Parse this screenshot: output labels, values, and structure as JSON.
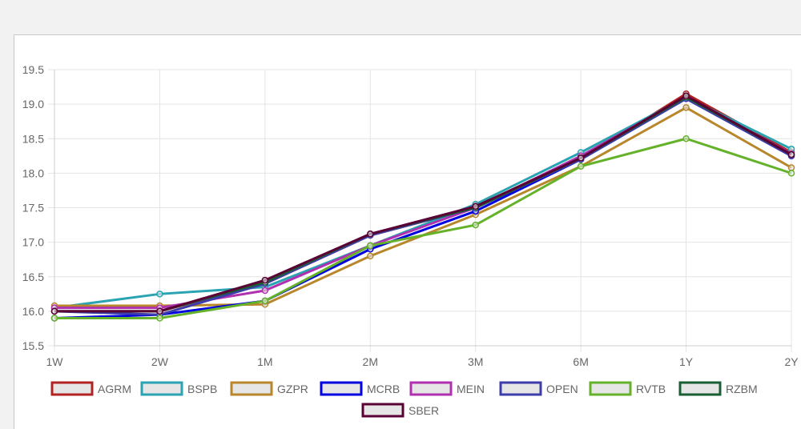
{
  "chart_data": {
    "type": "line",
    "title": "",
    "xlabel": "",
    "ylabel": "",
    "categories": [
      "1W",
      "2W",
      "1M",
      "2M",
      "3M",
      "6M",
      "1Y",
      "2Y"
    ],
    "ylim": [
      15.5,
      19.5
    ],
    "yticks": [
      "15.5",
      "16.0",
      "16.5",
      "17.0",
      "17.5",
      "18.0",
      "18.5",
      "19.0",
      "19.5"
    ],
    "grid": true,
    "legend_position": "bottom",
    "series": [
      {
        "name": "AGRM",
        "color": "#b22222",
        "values": [
          16.0,
          16.0,
          16.4,
          17.1,
          17.5,
          18.2,
          19.15,
          18.3
        ]
      },
      {
        "name": "BSPB",
        "color": "#2aa3b2",
        "values": [
          16.05,
          16.25,
          16.35,
          16.95,
          17.55,
          18.3,
          19.1,
          18.35
        ]
      },
      {
        "name": "GZPR",
        "color": "#b8862b",
        "values": [
          16.08,
          16.08,
          16.1,
          16.8,
          17.4,
          18.1,
          18.95,
          18.08
        ]
      },
      {
        "name": "MCRB",
        "color": "#0000e0",
        "values": [
          15.9,
          15.95,
          16.15,
          16.9,
          17.45,
          18.2,
          19.08,
          18.25
        ]
      },
      {
        "name": "MEIN",
        "color": "#b030b0",
        "values": [
          16.05,
          16.05,
          16.3,
          16.95,
          17.5,
          18.25,
          19.1,
          18.28
        ]
      },
      {
        "name": "OPEN",
        "color": "#3c3caa",
        "values": [
          16.0,
          15.95,
          16.4,
          17.1,
          17.5,
          18.2,
          19.08,
          18.25
        ]
      },
      {
        "name": "RVTB",
        "color": "#64b22a",
        "values": [
          15.9,
          15.9,
          16.15,
          16.95,
          17.25,
          18.1,
          18.5,
          18.0
        ]
      },
      {
        "name": "RZBM",
        "color": "#1a5e34",
        "values": [
          16.0,
          16.0,
          16.42,
          17.12,
          17.5,
          18.22,
          19.1,
          18.27
        ]
      },
      {
        "name": "SBER",
        "color": "#5a0035",
        "values": [
          16.0,
          16.0,
          16.45,
          17.12,
          17.52,
          18.22,
          19.12,
          18.27
        ]
      }
    ]
  }
}
